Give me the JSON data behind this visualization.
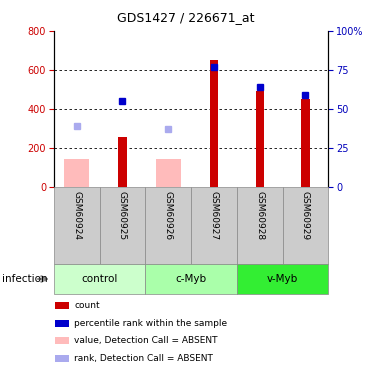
{
  "title": "GDS1427 / 226671_at",
  "samples": [
    "GSM60924",
    "GSM60925",
    "GSM60926",
    "GSM60927",
    "GSM60928",
    "GSM60929"
  ],
  "count_values": [
    null,
    255,
    null,
    650,
    490,
    450
  ],
  "count_absent": [
    145,
    null,
    145,
    null,
    null,
    null
  ],
  "rank_values": [
    null,
    55,
    null,
    77,
    64,
    59
  ],
  "rank_absent": [
    39,
    null,
    37,
    null,
    null,
    null
  ],
  "left_ylim": [
    0,
    800
  ],
  "right_ylim": [
    0,
    100
  ],
  "left_ticks": [
    0,
    200,
    400,
    600,
    800
  ],
  "right_ticks": [
    0,
    25,
    50,
    75,
    100
  ],
  "right_tick_labels": [
    "0",
    "25",
    "50",
    "75",
    "100%"
  ],
  "left_tick_color": "#cc0000",
  "right_tick_color": "#0000bb",
  "count_bar_color": "#cc0000",
  "count_absent_color": "#ffbbbb",
  "rank_marker_color": "#0000cc",
  "rank_absent_color": "#aaaaee",
  "group_defs": [
    {
      "name": "control",
      "start": 0,
      "end": 2,
      "color": "#ccffcc"
    },
    {
      "name": "c-Myb",
      "start": 2,
      "end": 4,
      "color": "#aaffaa"
    },
    {
      "name": "v-Myb",
      "start": 4,
      "end": 6,
      "color": "#33ee33"
    }
  ],
  "bg_color_samples": "#cccccc",
  "infection_label": "infection",
  "legend_labels": [
    "count",
    "percentile rank within the sample",
    "value, Detection Call = ABSENT",
    "rank, Detection Call = ABSENT"
  ],
  "legend_colors": [
    "#cc0000",
    "#0000cc",
    "#ffbbbb",
    "#aaaaee"
  ]
}
